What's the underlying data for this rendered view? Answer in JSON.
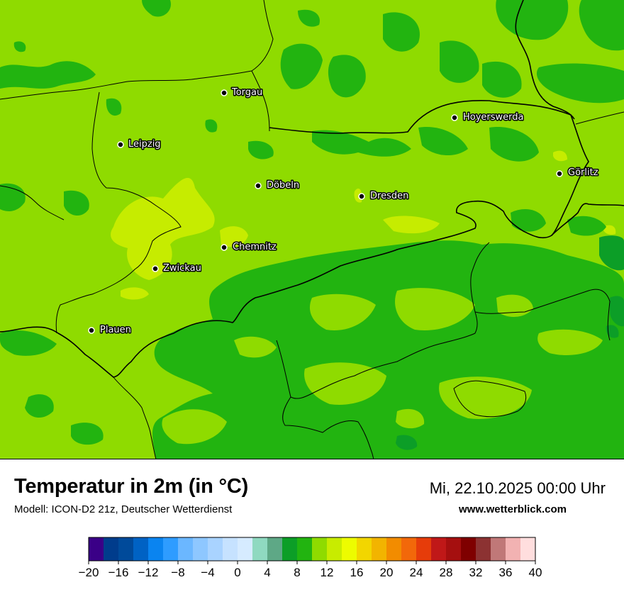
{
  "map": {
    "title": "Temperatur in 2m (in °C)",
    "model_line": "Modell: ICON-D2 21z, Deutscher Wetterdienst",
    "datetime": "Mi, 22.10.2025 00:00 Uhr",
    "website": "www.wetterblick.com",
    "cities": [
      {
        "name": "Torgau"
      },
      {
        "name": "Hoyerswerda"
      },
      {
        "name": "Leipzig"
      },
      {
        "name": "Görlitz"
      },
      {
        "name": "Döbeln"
      },
      {
        "name": "Dresden"
      },
      {
        "name": "Chemnitz"
      },
      {
        "name": "Zwickau"
      },
      {
        "name": "Plauen"
      }
    ]
  },
  "legend": {
    "colors": [
      "#3a0087",
      "#003c8c",
      "#004a9a",
      "#0062c4",
      "#0a84f0",
      "#2e9cff",
      "#6bb7ff",
      "#8ec7ff",
      "#a9d3ff",
      "#c6e2ff",
      "#d6ebff",
      "#8fd9c0",
      "#5ea886",
      "#0c9e27",
      "#22b410",
      "#8fdb00",
      "#c8ec00",
      "#edfc00",
      "#f2d600",
      "#f2b400",
      "#f28c00",
      "#f2680a",
      "#e63c0a",
      "#c01818",
      "#a50f0f",
      "#7f0000",
      "#8c3232",
      "#c07878",
      "#f2b2b2",
      "#ffdede"
    ],
    "ticks": [
      "−20",
      "−16",
      "−12",
      "−8",
      "−4",
      "0",
      "4",
      "8",
      "12",
      "16",
      "20",
      "24",
      "28",
      "32",
      "36",
      "40"
    ]
  }
}
